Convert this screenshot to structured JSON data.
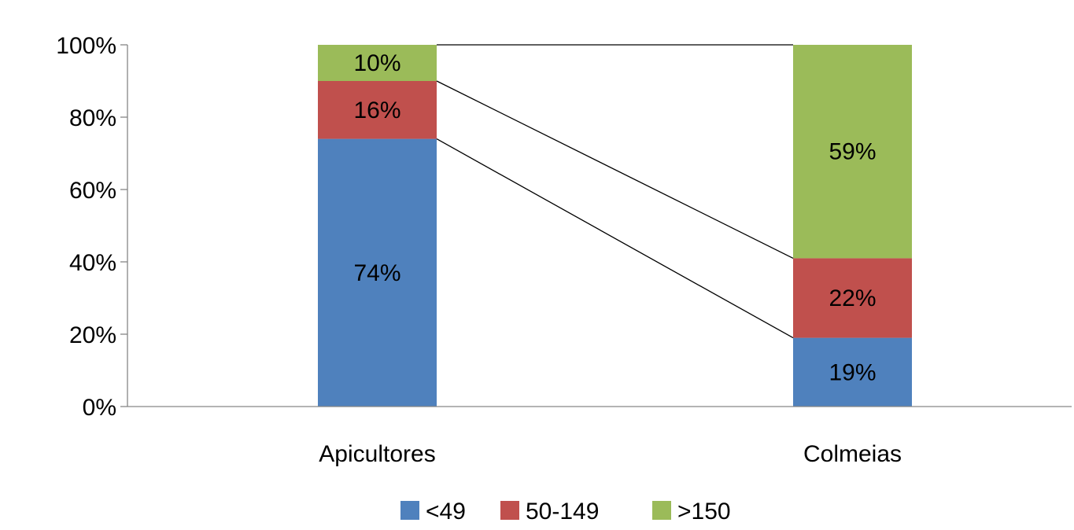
{
  "chart_data": {
    "type": "bar",
    "stacked": true,
    "percent": true,
    "categories": [
      "Apicultores",
      "Colmeias"
    ],
    "series": [
      {
        "name": "<49",
        "values": [
          74,
          19
        ],
        "labels": [
          "74%",
          "19%"
        ],
        "color": "#4F81BD"
      },
      {
        "name": "50-149",
        "values": [
          16,
          22
        ],
        "labels": [
          "16%",
          "22%"
        ],
        "color": "#C0504D"
      },
      {
        "name": ">150",
        "values": [
          10,
          59
        ],
        "labels": [
          "10%",
          "59%"
        ],
        "color": "#9BBB59"
      }
    ],
    "ylim": [
      0,
      100
    ],
    "yticks": [
      "0%",
      "20%",
      "40%",
      "60%",
      "80%",
      "100%"
    ],
    "ytick_values": [
      0,
      20,
      40,
      60,
      80,
      100
    ],
    "series_lines": true,
    "grid": false,
    "legend_position": "bottom"
  }
}
